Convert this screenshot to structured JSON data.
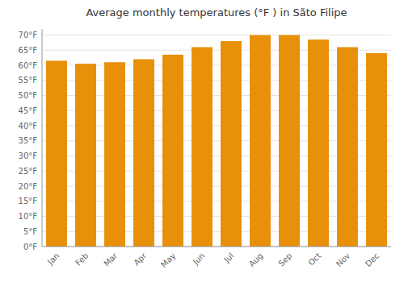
{
  "chart_data": {
    "type": "bar",
    "title": "Average monthly temperatures (°F ) in Sãto Filipe",
    "categories": [
      "Jan",
      "Feb",
      "Mar",
      "Apr",
      "May",
      "Jun",
      "Jul",
      "Aug",
      "Sep",
      "Oct",
      "Nov",
      "Dec"
    ],
    "values": [
      61.5,
      60.5,
      61.0,
      62.0,
      63.5,
      66.0,
      68.0,
      70.0,
      70.0,
      68.5,
      66.0,
      64.0
    ],
    "color": "#E8900A",
    "ylim": [
      0,
      72
    ],
    "yticks": [
      {
        "value": 0,
        "label": "0°F"
      },
      {
        "value": 5,
        "label": "5°F"
      },
      {
        "value": 10,
        "label": "10°F"
      },
      {
        "value": 15,
        "label": "15°F"
      },
      {
        "value": 20,
        "label": "20°F"
      },
      {
        "value": 25,
        "label": "25°F"
      },
      {
        "value": 30,
        "label": "30°F"
      },
      {
        "value": 35,
        "label": "35°F"
      },
      {
        "value": 40,
        "label": "40°F"
      },
      {
        "value": 45,
        "label": "45°F"
      },
      {
        "value": 50,
        "label": "50°F"
      },
      {
        "value": 55,
        "label": "55°F"
      },
      {
        "value": 60,
        "label": "60°F"
      },
      {
        "value": 65,
        "label": "65°F"
      },
      {
        "value": 70,
        "label": "70°F"
      }
    ],
    "grid": true
  }
}
